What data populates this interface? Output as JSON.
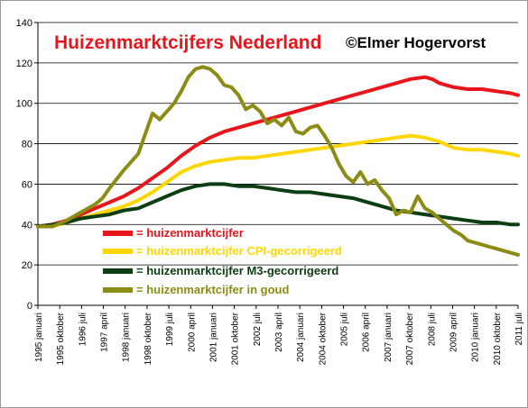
{
  "chart_data": {
    "type": "line",
    "title": "Huizenmarktcijfers Nederland",
    "subtitle": "©Elmer Hogervorst",
    "xlabel": "",
    "ylabel": "",
    "ylim": [
      0,
      140
    ],
    "yticks": [
      "0",
      "20",
      "40",
      "60",
      "80",
      "100",
      "120",
      "140"
    ],
    "grid": "horizontal",
    "legend_position": "bottom-center",
    "x_tick_labels": [
      "1995 januari",
      "1995 oktober",
      "1996 juli",
      "1997 april",
      "1998 januari",
      "1998 oktober",
      "1999 juli",
      "2000 april",
      "2001 januari",
      "2001 oktober",
      "2002 juli",
      "2003 april",
      "2004 januari",
      "2004 oktober",
      "2005 juli",
      "2006 april",
      "2007 januari",
      "2007 oktober",
      "2008 juli",
      "2009 april",
      "2010 januari",
      "2010 oktober",
      "2011 juli"
    ],
    "x_range": [
      1995.0,
      2011.75
    ],
    "series": [
      {
        "name": "= huizenmarktcijfer",
        "color": "#e8151c",
        "x": [
          1995.0,
          1995.5,
          1996.0,
          1996.5,
          1997.0,
          1997.5,
          1998.0,
          1998.5,
          1999.0,
          1999.5,
          2000.0,
          2000.5,
          2001.0,
          2001.5,
          2002.0,
          2002.5,
          2003.0,
          2003.5,
          2004.0,
          2004.5,
          2005.0,
          2005.5,
          2006.0,
          2006.5,
          2007.0,
          2007.5,
          2008.0,
          2008.5,
          2008.75,
          2009.0,
          2009.5,
          2010.0,
          2010.5,
          2011.0,
          2011.5,
          2011.75
        ],
        "values": [
          39,
          40,
          42,
          45,
          48,
          51,
          54,
          58,
          63,
          68,
          74,
          79,
          83,
          86,
          88,
          90,
          92,
          94,
          96,
          98,
          100,
          102,
          104,
          106,
          108,
          110,
          112,
          113,
          112,
          110,
          108,
          107,
          107,
          106,
          105,
          104
        ]
      },
      {
        "name": "= huizenmarktcijfer CPI-gecorrigeerd",
        "color": "#ffd700",
        "x": [
          1995.0,
          1995.5,
          1996.0,
          1996.5,
          1997.0,
          1997.5,
          1998.0,
          1998.5,
          1999.0,
          1999.5,
          2000.0,
          2000.5,
          2001.0,
          2001.5,
          2002.0,
          2002.5,
          2003.0,
          2003.5,
          2004.0,
          2004.5,
          2005.0,
          2005.5,
          2006.0,
          2006.5,
          2007.0,
          2007.5,
          2008.0,
          2008.5,
          2009.0,
          2009.5,
          2010.0,
          2010.5,
          2011.0,
          2011.5,
          2011.75
        ],
        "values": [
          39,
          39,
          41,
          43,
          45,
          47,
          49,
          52,
          56,
          61,
          66,
          69,
          71,
          72,
          73,
          73,
          74,
          75,
          76,
          77,
          78,
          79,
          80,
          81,
          82,
          83,
          84,
          83,
          81,
          78,
          77,
          77,
          76,
          75,
          74
        ]
      },
      {
        "name": "= huizenmarktcijfer M3-gecorrigeerd",
        "color": "#0d3d12",
        "x": [
          1995.0,
          1995.5,
          1996.0,
          1996.5,
          1997.0,
          1997.5,
          1998.0,
          1998.5,
          1999.0,
          1999.5,
          2000.0,
          2000.5,
          2001.0,
          2001.5,
          2002.0,
          2002.5,
          2003.0,
          2003.5,
          2004.0,
          2004.5,
          2005.0,
          2005.5,
          2006.0,
          2006.5,
          2007.0,
          2007.5,
          2008.0,
          2008.5,
          2009.0,
          2009.5,
          2010.0,
          2010.5,
          2011.0,
          2011.5,
          2011.75
        ],
        "values": [
          39,
          40,
          41,
          43,
          44,
          45,
          47,
          48,
          51,
          54,
          57,
          59,
          60,
          60,
          59,
          59,
          58,
          57,
          56,
          56,
          55,
          54,
          53,
          51,
          49,
          47,
          46,
          45,
          44,
          43,
          42,
          41,
          41,
          40,
          40
        ]
      },
      {
        "name": "= huizenmarktcijfer in goud",
        "color": "#8c8c14",
        "x": [
          1995.0,
          1995.5,
          1996.0,
          1996.5,
          1997.0,
          1997.25,
          1997.5,
          1998.0,
          1998.5,
          1999.0,
          1999.25,
          1999.5,
          1999.75,
          2000.0,
          2000.25,
          2000.5,
          2000.75,
          2001.0,
          2001.25,
          2001.5,
          2001.75,
          2002.0,
          2002.25,
          2002.5,
          2002.75,
          2003.0,
          2003.25,
          2003.5,
          2003.75,
          2004.0,
          2004.25,
          2004.5,
          2004.75,
          2005.0,
          2005.25,
          2005.5,
          2005.75,
          2006.0,
          2006.25,
          2006.5,
          2006.75,
          2007.0,
          2007.25,
          2007.5,
          2007.75,
          2008.0,
          2008.25,
          2008.5,
          2008.75,
          2009.0,
          2009.25,
          2009.5,
          2009.75,
          2010.0,
          2010.25,
          2010.5,
          2010.75,
          2011.0,
          2011.25,
          2011.5,
          2011.75
        ],
        "values": [
          39,
          39,
          42,
          46,
          50,
          53,
          58,
          67,
          75,
          95,
          92,
          96,
          100,
          106,
          113,
          117,
          118,
          117,
          114,
          109,
          108,
          104,
          97,
          99,
          96,
          90,
          92,
          89,
          93,
          86,
          85,
          88,
          89,
          84,
          78,
          70,
          64,
          61,
          66,
          60,
          62,
          57,
          53,
          45,
          47,
          46,
          54,
          48,
          46,
          43,
          40,
          37,
          35,
          32,
          31,
          30,
          29,
          28,
          27,
          26,
          25
        ]
      }
    ]
  }
}
